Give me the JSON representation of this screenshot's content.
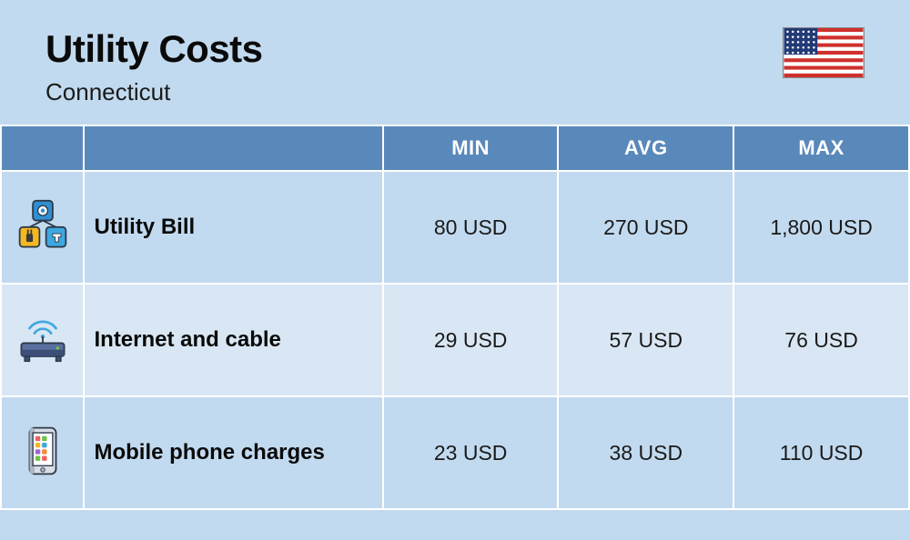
{
  "header": {
    "title": "Utility Costs",
    "subtitle": "Connecticut",
    "background_color": "#c2daef"
  },
  "flag": {
    "name": "usa-flag",
    "stripe_red": "#d0302b",
    "stripe_white": "#ffffff",
    "canton_blue": "#223a75",
    "star_color": "#ffffff"
  },
  "table": {
    "header_bg": "#5989bb",
    "header_text_color": "#ffffff",
    "row_bg_odd": "#c2daef",
    "row_bg_even": "#d8e7f3",
    "columns": [
      "MIN",
      "AVG",
      "MAX"
    ],
    "rows": [
      {
        "icon": "utility-icon",
        "label": "Utility Bill",
        "min": "80 USD",
        "avg": "270 USD",
        "max": "1,800 USD"
      },
      {
        "icon": "router-icon",
        "label": "Internet and cable",
        "min": "29 USD",
        "avg": "57 USD",
        "max": "76 USD"
      },
      {
        "icon": "phone-icon",
        "label": "Mobile phone charges",
        "min": "23 USD",
        "avg": "38 USD",
        "max": "110 USD"
      }
    ]
  },
  "icons": {
    "utility": {
      "gear_bg": "#2f8fd0",
      "gear_fg": "#ffffff",
      "plug_bg": "#f5b821",
      "plug_fg": "#3a3a3a",
      "water_bg": "#3fa7e0",
      "water_fg": "#ffffff",
      "outline": "#2d3a4a"
    },
    "router": {
      "body": "#5a6fa0",
      "body_dark": "#3d4e78",
      "light": "#6fc24a",
      "wave": "#3fa7e0",
      "outline": "#2d3a4a"
    },
    "phone": {
      "body": "#d8dde6",
      "body_dark": "#aeb6c4",
      "screen": "#ffffff",
      "outline": "#2d3a4a",
      "app1": "#f06060",
      "app2": "#6fc24a",
      "app3": "#f5b821",
      "app4": "#3fa7e0",
      "app5": "#a066d0",
      "app6": "#f58b3a"
    }
  }
}
